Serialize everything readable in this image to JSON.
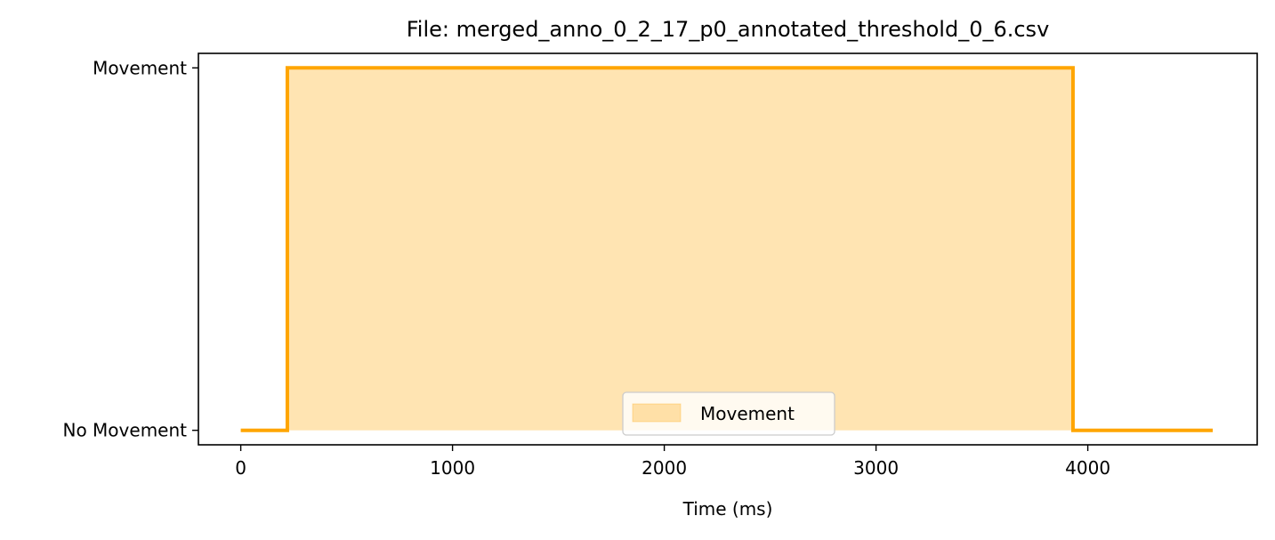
{
  "chart_data": {
    "type": "area",
    "title": "File: merged_anno_0_2_17_p0_annotated_threshold_0_6.csv",
    "xlabel": "Time (ms)",
    "ylabel": "",
    "xlim": [
      -200,
      4800
    ],
    "ylim": [
      -0.04,
      1.04
    ],
    "x_ticks": [
      0,
      1000,
      2000,
      3000,
      4000
    ],
    "x_tick_labels": [
      "0",
      "1000",
      "2000",
      "3000",
      "4000"
    ],
    "y_ticks": [
      0,
      1
    ],
    "y_tick_labels": [
      "No Movement",
      "Movement"
    ],
    "grid": false,
    "legend_position": "bottom-center",
    "series": [
      {
        "name": "Movement",
        "x": [
          0,
          220,
          220,
          3930,
          3930,
          4590
        ],
        "y": [
          0,
          0,
          1,
          1,
          0,
          0
        ],
        "fill": true
      }
    ],
    "colors": {
      "line": "#FFA500",
      "fill": "#FFA500",
      "fill_opacity": 0.3,
      "axes": "#000000"
    }
  }
}
